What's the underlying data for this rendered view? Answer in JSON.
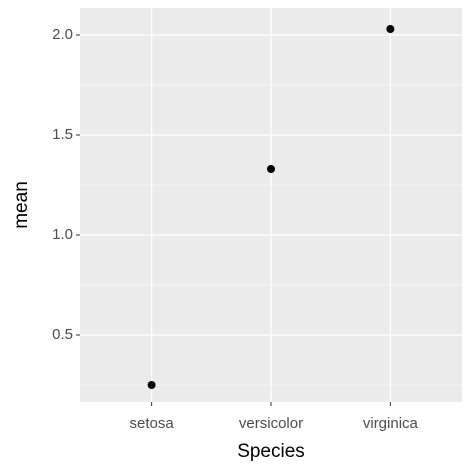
{
  "chart_data": {
    "type": "scatter",
    "x_label": "Species",
    "y_label": "mean",
    "categories": [
      "setosa",
      "versicolor",
      "virginica"
    ],
    "values": [
      0.25,
      1.33,
      2.03
    ],
    "color": "#000000",
    "ylim": [
      0.165,
      2.135
    ],
    "yticks": [
      0.5,
      {
        "value": 1,
        "label": "1.0"
      },
      1.5,
      {
        "value": 2,
        "label": "2.0"
      }
    ],
    "grid": true
  }
}
